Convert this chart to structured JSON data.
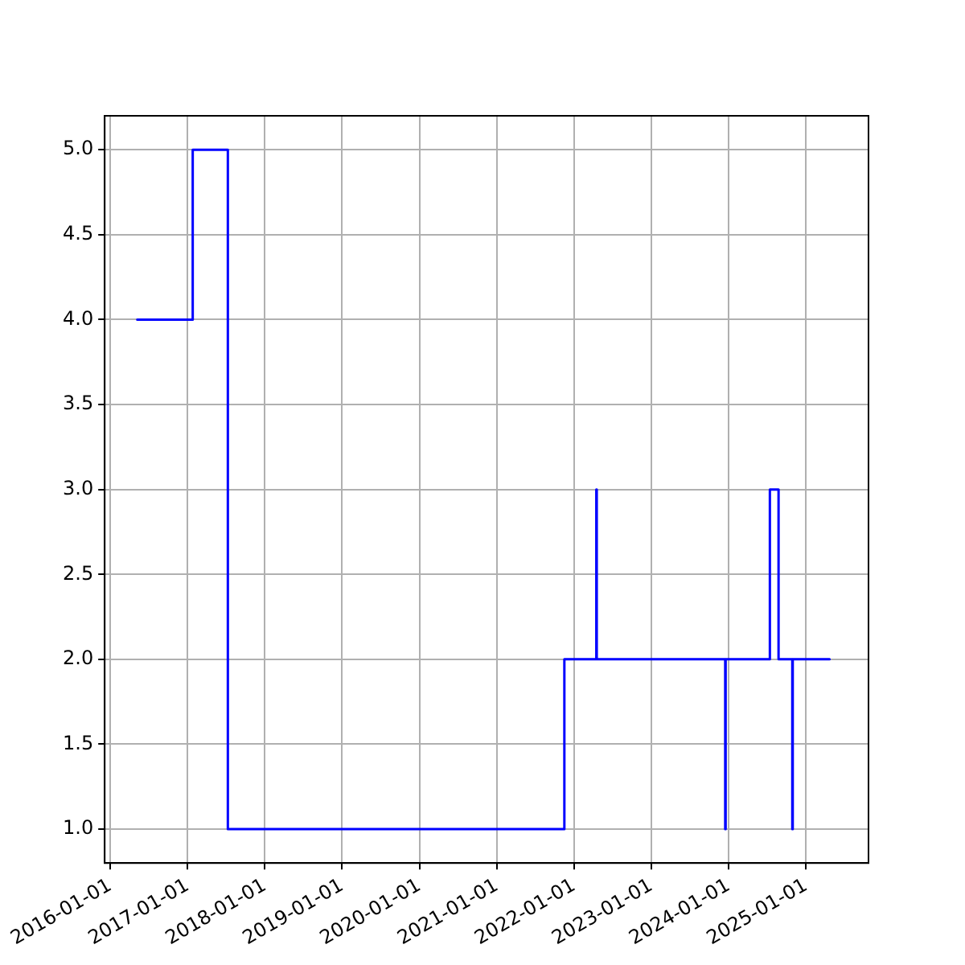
{
  "chart_data": {
    "type": "step",
    "x": [
      "2016-05-08",
      "2017-01-25",
      "2017-07-10",
      "2021-11-16",
      "2022-04-16",
      "2022-04-18",
      "2023-12-16",
      "2023-12-18",
      "2024-07-14",
      "2024-08-24",
      "2024-10-28",
      "2024-10-30",
      "2025-04-22"
    ],
    "series": [
      {
        "color": "#0000ff",
        "values": [
          4,
          5,
          1,
          2,
          3,
          2,
          1,
          2,
          3,
          2,
          1,
          2,
          2
        ]
      }
    ],
    "xlim": [
      "2015-12-06",
      "2025-10-23"
    ],
    "xticks": [
      "2016-01-01",
      "2017-01-01",
      "2018-01-01",
      "2019-01-01",
      "2020-01-01",
      "2021-01-01",
      "2022-01-01",
      "2023-01-01",
      "2024-01-01",
      "2025-01-01"
    ],
    "ylim": [
      0.8,
      5.2
    ],
    "yticks": [
      {
        "value": 1,
        "label": "1.0"
      },
      {
        "value": 1.5,
        "label": "1.5"
      },
      {
        "value": 2,
        "label": "2.0"
      },
      {
        "value": 2.5,
        "label": "2.5"
      },
      {
        "value": 3,
        "label": "3.0"
      },
      {
        "value": 3.5,
        "label": "3.5"
      },
      {
        "value": 4,
        "label": "4.0"
      },
      {
        "value": 4.5,
        "label": "4.5"
      },
      {
        "value": 5,
        "label": "5.0"
      }
    ],
    "grid": true,
    "legend": false,
    "marker": "none",
    "line_style": "solid"
  }
}
